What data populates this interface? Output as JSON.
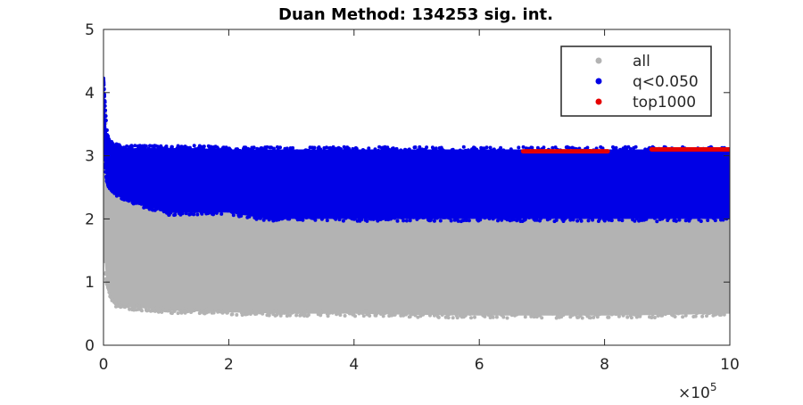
{
  "chart_data": {
    "type": "scatter",
    "title": "Duan Method: 134253 sig. int.",
    "xlabel": "",
    "ylabel": "",
    "x_multiplier_label": "×10",
    "x_multiplier_exponent": "5",
    "xlim": [
      0,
      10
    ],
    "ylim": [
      0,
      5
    ],
    "x_ticks": [
      "0",
      "2",
      "4",
      "6",
      "8",
      "10"
    ],
    "y_ticks": [
      "0",
      "1",
      "2",
      "3",
      "4",
      "5"
    ],
    "grid": false,
    "legend_position": "top-right",
    "series": [
      {
        "name": "all",
        "color": "#b3b3b3",
        "description_points": {
          "x": [
            0.0,
            0.03,
            0.05,
            0.1,
            0.2,
            0.4,
            0.7,
            1.0,
            2.0,
            3.0,
            4.0,
            5.0,
            6.0,
            7.0,
            8.0,
            9.0,
            10.0
          ],
          "y_min": [
            1.6,
            1.2,
            1.0,
            0.8,
            0.65,
            0.6,
            0.58,
            0.55,
            0.52,
            0.5,
            0.5,
            0.48,
            0.47,
            0.47,
            0.47,
            0.48,
            0.5
          ],
          "y_max": [
            4.0,
            3.6,
            3.3,
            3.1,
            3.0,
            3.0,
            2.9,
            2.9,
            2.8,
            2.8,
            2.8,
            2.7,
            2.8,
            2.8,
            2.8,
            2.8,
            2.8
          ]
        }
      },
      {
        "name": "q<0.050",
        "color": "#0000e6",
        "description_points": {
          "x": [
            0.0,
            0.03,
            0.05,
            0.1,
            0.2,
            0.4,
            0.7,
            1.0,
            1.5,
            2.0,
            2.6,
            3.0,
            4.0,
            5.0,
            6.0,
            7.0,
            8.0,
            9.0,
            10.0
          ],
          "y_min": [
            3.0,
            2.8,
            2.6,
            2.5,
            2.4,
            2.3,
            2.2,
            2.1,
            2.1,
            2.1,
            2.0,
            2.0,
            2.0,
            2.0,
            2.0,
            2.0,
            2.0,
            2.0,
            2.0
          ],
          "y_max": [
            4.2,
            3.7,
            3.4,
            3.2,
            3.15,
            3.12,
            3.12,
            3.12,
            3.12,
            3.1,
            3.1,
            3.1,
            3.1,
            3.1,
            3.1,
            3.1,
            3.1,
            3.1,
            3.1
          ]
        }
      },
      {
        "name": "top1000",
        "color": "#e60000",
        "segments": [
          {
            "x_start": 6.7,
            "x_end": 8.05,
            "y": 3.07
          },
          {
            "x_start": 8.75,
            "x_end": 10.0,
            "y": 3.1
          }
        ]
      }
    ]
  }
}
